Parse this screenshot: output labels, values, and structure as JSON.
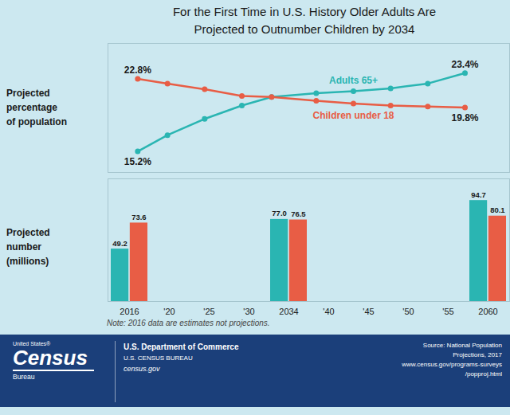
{
  "chart_data": [
    {
      "type": "line",
      "title": "For the First Time in U.S. History Older Adults Are\nProjected to Outnumber Children by 2034",
      "ylabel": "Projected\npercentage\nof population",
      "x": [
        2016,
        2020,
        2025,
        2030,
        2034,
        2040,
        2045,
        2050,
        2055,
        2060
      ],
      "xlim": [
        2012,
        2066
      ],
      "ylim": [
        13.0,
        26.5
      ],
      "tick_labels": false,
      "grid": false,
      "marker": "circle",
      "data_labels": true,
      "series": [
        {
          "name": "Adults 65+",
          "color": "#2ab5b2",
          "values": [
            15.2,
            16.9,
            18.6,
            20.0,
            20.9,
            21.3,
            21.5,
            21.8,
            22.3,
            23.4
          ],
          "value_labels": [
            "15.2%",
            null,
            null,
            null,
            null,
            null,
            null,
            null,
            null,
            "23.4%"
          ]
        },
        {
          "name": "Children under 18",
          "color": "#e85d45",
          "values": [
            22.8,
            22.3,
            21.7,
            21.0,
            20.9,
            20.5,
            20.2,
            20.0,
            19.9,
            19.8
          ],
          "value_labels": [
            "22.8%",
            null,
            null,
            null,
            null,
            null,
            null,
            null,
            null,
            "19.8%"
          ]
        }
      ]
    },
    {
      "type": "bar",
      "ylabel": "Projected\nnumber\n(millions)",
      "categories": [
        "2016",
        "'20",
        "'25",
        "'30",
        "2034",
        "'40",
        "'45",
        "'50",
        "'55",
        "2060"
      ],
      "ylim": [
        0,
        115
      ],
      "tick_labels": "x",
      "grid": false,
      "data_labels": true,
      "series": [
        {
          "name": "Adults 65+",
          "color": "#2ab5b2",
          "values": [
            49.2,
            null,
            null,
            null,
            77.0,
            null,
            null,
            null,
            null,
            94.7
          ],
          "value_labels": [
            "49.2",
            null,
            null,
            null,
            "77.0",
            null,
            null,
            null,
            null,
            "94.7"
          ]
        },
        {
          "name": "Children under 18",
          "color": "#e85d45",
          "values": [
            73.6,
            null,
            null,
            null,
            76.5,
            null,
            null,
            null,
            null,
            80.1
          ],
          "value_labels": [
            "73.6",
            null,
            null,
            null,
            "76.5",
            null,
            null,
            null,
            null,
            "80.1"
          ]
        }
      ],
      "annotations": [
        "Note: 2016 data are estimates not projections.",
        "United States®",
        "Census",
        "Bureau",
        "U.S. Department of Commerce",
        "U.S. CENSUS BUREAU",
        "census.gov",
        "Source: National Population\nProjections, 2017\nwww.census.gov/programs-surveys\n/popproj.html"
      ]
    }
  ]
}
